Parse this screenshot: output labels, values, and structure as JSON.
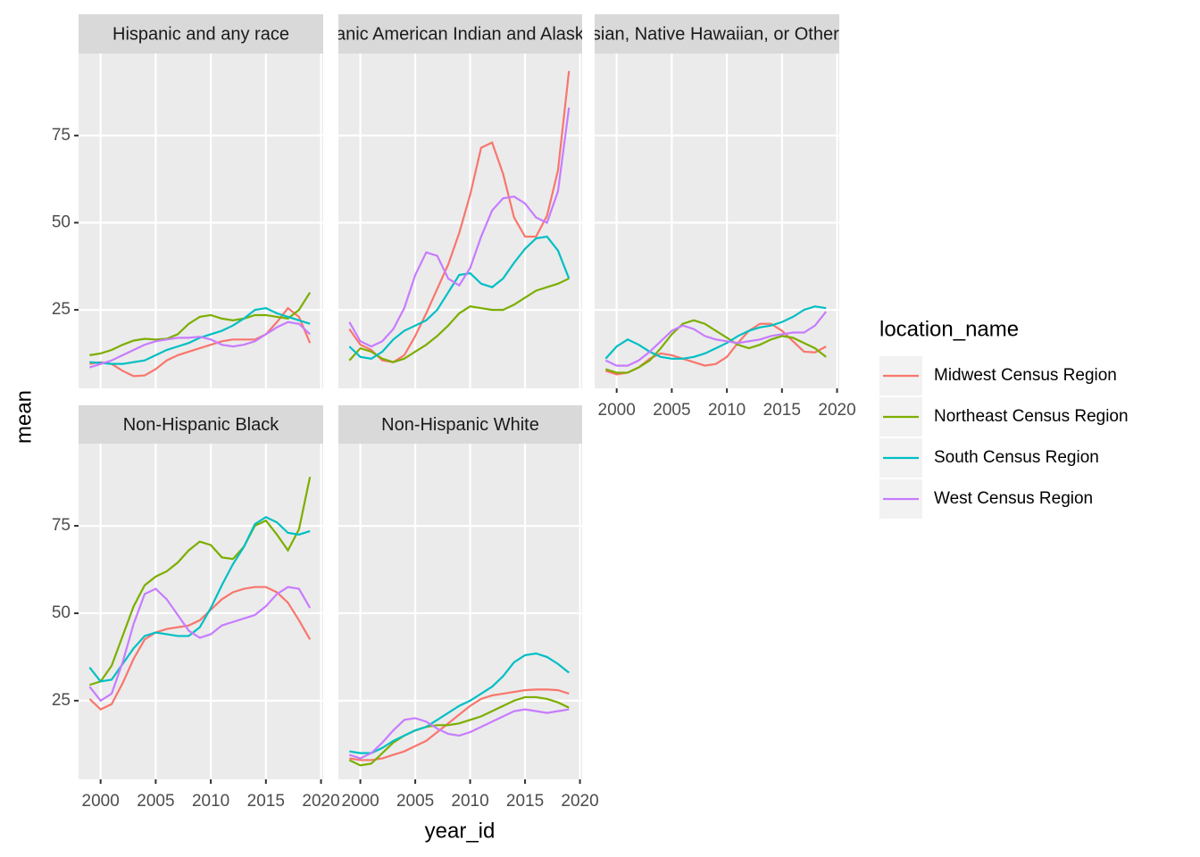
{
  "chart_data": [
    {
      "type": "line",
      "title": "Hispanic and any race",
      "x": [
        1999,
        2000,
        2001,
        2002,
        2003,
        2004,
        2005,
        2006,
        2007,
        2008,
        2009,
        2010,
        2011,
        2012,
        2013,
        2014,
        2015,
        2016,
        2017,
        2018,
        2019
      ],
      "series": [
        {
          "name": "Midwest Census Region",
          "color": "#F8766D",
          "values": [
            9.5,
            10,
            9.5,
            7.5,
            6,
            6.2,
            8,
            10.5,
            12,
            13,
            14,
            15,
            16,
            16.5,
            16.5,
            16.5,
            18,
            21.5,
            25.5,
            23,
            15.5
          ]
        },
        {
          "name": "Northeast Census Region",
          "color": "#7CAE00",
          "values": [
            12,
            12.5,
            13.5,
            15,
            16.2,
            16.7,
            16.5,
            16.7,
            18,
            21,
            23,
            23.5,
            22.5,
            22,
            22.5,
            23.5,
            23.5,
            23,
            22.5,
            25,
            30
          ]
        },
        {
          "name": "South Census Region",
          "color": "#00BFC4",
          "values": [
            10,
            9.8,
            9.5,
            9.5,
            10,
            10.5,
            12,
            13.5,
            14.5,
            15.5,
            17,
            18,
            19,
            20.5,
            22.5,
            25,
            25.5,
            24,
            23,
            22,
            21
          ]
        },
        {
          "name": "West Census Region",
          "color": "#C77CFF",
          "values": [
            8.5,
            9.5,
            10.5,
            12,
            13.5,
            15,
            16,
            16.5,
            17,
            17,
            17.3,
            16.5,
            15,
            14.5,
            15,
            16,
            18,
            20,
            21.5,
            21,
            18
          ]
        }
      ],
      "xlim": [
        1998,
        2020.2
      ],
      "ylim": [
        2.5,
        98.5
      ],
      "xticks": [
        2000,
        2005,
        2010,
        2015,
        2020
      ],
      "yticks": [
        25,
        50,
        75
      ],
      "grid": true
    },
    {
      "type": "line",
      "title": "Non-Hispanic American Indian and Alaskan Native",
      "x": [
        1999,
        2000,
        2001,
        2002,
        2003,
        2004,
        2005,
        2006,
        2007,
        2008,
        2009,
        2010,
        2011,
        2012,
        2013,
        2014,
        2015,
        2016,
        2017,
        2018,
        2019
      ],
      "series": [
        {
          "name": "Midwest Census Region",
          "color": "#F8766D",
          "values": [
            19.5,
            15,
            13.5,
            10.5,
            10,
            12,
            17.5,
            24,
            31,
            38,
            47,
            58,
            71.5,
            73,
            64,
            51.5,
            46,
            46,
            52,
            65,
            93.5
          ]
        },
        {
          "name": "Northeast Census Region",
          "color": "#7CAE00",
          "values": [
            10.5,
            14,
            13,
            11,
            10,
            11,
            13,
            15,
            17.5,
            20.5,
            24,
            26,
            25.5,
            25,
            25,
            26.5,
            28.5,
            30.5,
            31.5,
            32.5,
            34
          ]
        },
        {
          "name": "South Census Region",
          "color": "#00BFC4",
          "values": [
            14.5,
            11.5,
            11,
            13,
            16.5,
            19,
            20.5,
            22,
            25,
            30,
            35,
            35.5,
            32.5,
            31.5,
            34,
            38.5,
            42.5,
            45.5,
            46,
            42,
            34
          ]
        },
        {
          "name": "West Census Region",
          "color": "#C77CFF",
          "values": [
            21.5,
            16,
            14.5,
            16,
            19.5,
            25.5,
            35,
            41.5,
            40.5,
            34,
            32,
            37,
            46,
            53.5,
            57,
            57.5,
            55.5,
            51.5,
            50,
            59,
            83
          ]
        }
      ],
      "xlim": [
        1998,
        2020.2
      ],
      "ylim": [
        2.5,
        98.5
      ],
      "xticks": [
        2000,
        2005,
        2010,
        2015,
        2020
      ],
      "yticks": [
        25,
        50,
        75
      ],
      "grid": true
    },
    {
      "type": "line",
      "title": "Non-Hispanic Asian, Native Hawaiian, or Other Pacific Islander",
      "x": [
        1999,
        2000,
        2001,
        2002,
        2003,
        2004,
        2005,
        2006,
        2007,
        2008,
        2009,
        2010,
        2011,
        2012,
        2013,
        2014,
        2015,
        2016,
        2017,
        2018,
        2019
      ],
      "series": [
        {
          "name": "Midwest Census Region",
          "color": "#F8766D",
          "values": [
            7.5,
            6.5,
            7,
            8.5,
            11,
            12.5,
            12,
            11,
            10,
            9,
            9.5,
            11.5,
            15.5,
            19,
            21,
            21,
            19,
            16,
            13,
            12.8,
            14.5
          ]
        },
        {
          "name": "Northeast Census Region",
          "color": "#7CAE00",
          "values": [
            8,
            7,
            7,
            8.5,
            10.5,
            14,
            18,
            21,
            22,
            21,
            19,
            17,
            15,
            14,
            15,
            16.5,
            17.5,
            17,
            15.5,
            14,
            11.5
          ]
        },
        {
          "name": "South Census Region",
          "color": "#00BFC4",
          "values": [
            11,
            14.5,
            16.5,
            15,
            13,
            11.5,
            11,
            11,
            11.5,
            12.5,
            14,
            15.5,
            17.5,
            19,
            20,
            20.5,
            21.5,
            23,
            25,
            26,
            25.5
          ]
        },
        {
          "name": "West Census Region",
          "color": "#C77CFF",
          "values": [
            10.5,
            9,
            9,
            10.5,
            13,
            16,
            19,
            20.5,
            19.5,
            17.5,
            16.5,
            16,
            15.5,
            16,
            16.5,
            17.5,
            18,
            18.5,
            18.5,
            20.5,
            24.5
          ]
        }
      ],
      "xlim": [
        1998,
        2020.2
      ],
      "ylim": [
        2.5,
        98.5
      ],
      "xticks": [
        2000,
        2005,
        2010,
        2015,
        2020
      ],
      "yticks": [
        25,
        50,
        75
      ],
      "grid": true
    },
    {
      "type": "line",
      "title": "Non-Hispanic Black",
      "x": [
        1999,
        2000,
        2001,
        2002,
        2003,
        2004,
        2005,
        2006,
        2007,
        2008,
        2009,
        2010,
        2011,
        2012,
        2013,
        2014,
        2015,
        2016,
        2017,
        2018,
        2019
      ],
      "series": [
        {
          "name": "Midwest Census Region",
          "color": "#F8766D",
          "values": [
            25.5,
            22.5,
            24,
            30,
            37,
            42.5,
            44.5,
            45.5,
            46,
            46.5,
            48,
            51,
            54,
            56,
            57,
            57.5,
            57.5,
            56,
            53,
            48,
            42.5
          ]
        },
        {
          "name": "Northeast Census Region",
          "color": "#7CAE00",
          "values": [
            29.5,
            30.5,
            35,
            43.5,
            52,
            58,
            60.5,
            62,
            64.5,
            68,
            70.5,
            69.5,
            66,
            65.5,
            69,
            75,
            76.5,
            72.5,
            68,
            74,
            89
          ]
        },
        {
          "name": "South Census Region",
          "color": "#00BFC4",
          "values": [
            34.5,
            30.5,
            31,
            35.5,
            40,
            43.5,
            44.5,
            44,
            43.5,
            43.5,
            46,
            51.5,
            58,
            64,
            69,
            75.5,
            77.5,
            76,
            73,
            72.5,
            73.5
          ]
        },
        {
          "name": "West Census Region",
          "color": "#C77CFF",
          "values": [
            29,
            25,
            27,
            36,
            47,
            55.5,
            57,
            54,
            49.5,
            45,
            43,
            44,
            46.5,
            47.5,
            48.5,
            49.5,
            52,
            55.5,
            57.5,
            57,
            51.5
          ]
        }
      ],
      "xlim": [
        1998,
        2020.2
      ],
      "ylim": [
        2.5,
        98.5
      ],
      "xticks": [
        2000,
        2005,
        2010,
        2015,
        2020
      ],
      "yticks": [
        25,
        50,
        75
      ],
      "grid": true
    },
    {
      "type": "line",
      "title": "Non-Hispanic White",
      "x": [
        1999,
        2000,
        2001,
        2002,
        2003,
        2004,
        2005,
        2006,
        2007,
        2008,
        2009,
        2010,
        2011,
        2012,
        2013,
        2014,
        2015,
        2016,
        2017,
        2018,
        2019
      ],
      "series": [
        {
          "name": "Midwest Census Region",
          "color": "#F8766D",
          "values": [
            8.5,
            8,
            8,
            8.5,
            9.5,
            10.5,
            12,
            13.5,
            16,
            18.5,
            21,
            23.5,
            25.5,
            26.5,
            27,
            27.5,
            28,
            28.2,
            28.2,
            28,
            27
          ]
        },
        {
          "name": "Northeast Census Region",
          "color": "#7CAE00",
          "values": [
            8,
            6.5,
            7,
            10,
            13,
            15,
            16.5,
            17.5,
            18,
            18,
            18.5,
            19.5,
            20.5,
            22,
            23.5,
            25,
            26,
            26,
            25.5,
            24.5,
            23
          ]
        },
        {
          "name": "South Census Region",
          "color": "#00BFC4",
          "values": [
            10.5,
            10,
            10,
            11.5,
            13.5,
            15,
            16.5,
            17.5,
            19.5,
            21.5,
            23.5,
            25,
            27,
            29,
            32,
            36,
            38,
            38.5,
            37.5,
            35.5,
            33
          ]
        },
        {
          "name": "West Census Region",
          "color": "#C77CFF",
          "values": [
            9.5,
            8.5,
            10,
            13,
            16.5,
            19.5,
            20,
            19,
            17,
            15.5,
            15,
            16,
            17.5,
            19,
            20.5,
            22,
            22.5,
            22,
            21.5,
            22,
            22.5
          ]
        }
      ],
      "xlim": [
        1998,
        2020.2
      ],
      "ylim": [
        2.5,
        98.5
      ],
      "xticks": [
        2000,
        2005,
        2010,
        2015,
        2020
      ],
      "yticks": [
        25,
        50,
        75
      ],
      "grid": true
    }
  ],
  "xlabel": "year_id",
  "ylabel": "mean",
  "legend_title": "location_name"
}
